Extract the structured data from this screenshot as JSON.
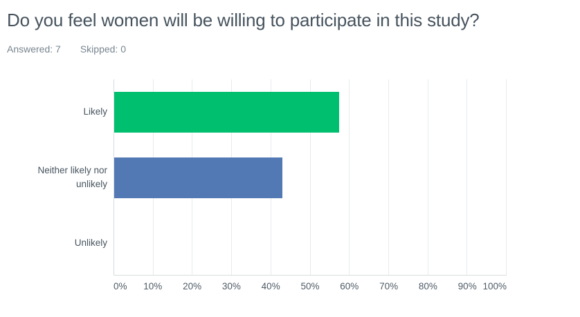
{
  "header": {
    "title": "Do you feel women will be willing to participate in this study?",
    "answered": "Answered: 7",
    "skipped": "Skipped: 0"
  },
  "chart_data": {
    "type": "bar",
    "orientation": "horizontal",
    "title": "Do you feel women will be willing to participate in this study?",
    "answered_count": 7,
    "skipped_count": 0,
    "categories": [
      "Likely",
      "Neither likely nor unlikely",
      "Unlikely"
    ],
    "values": [
      57.14,
      42.86,
      0
    ],
    "value_unit": "%",
    "xlim": [
      0,
      100
    ],
    "xtick_values": [
      0,
      10,
      20,
      30,
      40,
      50,
      60,
      70,
      80,
      90,
      100
    ],
    "xtick_labels": [
      "0%",
      "10%",
      "20%",
      "30%",
      "40%",
      "50%",
      "60%",
      "70%",
      "80%",
      "90%",
      "100%"
    ],
    "grid": true,
    "legend": false,
    "bar_colors": [
      "#00BF6F",
      "#5279B4",
      null
    ]
  },
  "colors": {
    "title_text": "#46535E",
    "meta_text": "#76848E",
    "category_text": "#47545F",
    "tick_text": "#4D5A65",
    "gridline": "#E8EAEC",
    "axis_line": "#D8DBDE",
    "bar_green": "#00BF6F",
    "bar_blue": "#5279B4"
  }
}
